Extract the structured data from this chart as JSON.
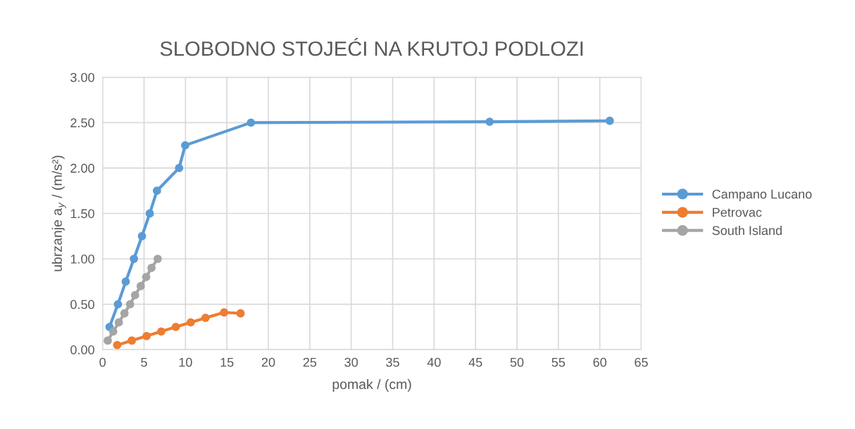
{
  "chart_data": {
    "type": "line",
    "title": "SLOBODNO STOJEĆI NA KRUTOJ PODLOZI",
    "xlabel": "pomak / (cm)",
    "ylabel": "ubrzanje a$_{y}$ / (m/s²)",
    "series": [
      {
        "name": "Campano Lucano",
        "color": "#5b9bd5",
        "x": [
          0.83,
          1.85,
          2.79,
          3.78,
          4.75,
          5.69,
          6.56,
          9.23,
          9.97,
          17.9,
          46.7,
          61.2
        ],
        "values": [
          0.25,
          0.5,
          0.75,
          1.0,
          1.25,
          1.5,
          1.75,
          2.0,
          2.25,
          2.5,
          2.51,
          2.52
        ]
      },
      {
        "name": "Petrovac",
        "color": "#ed7d31",
        "x": [
          1.76,
          3.52,
          5.31,
          7.07,
          8.83,
          10.63,
          12.42,
          14.66,
          16.65
        ],
        "values": [
          0.05,
          0.1,
          0.15,
          0.2,
          0.25,
          0.3,
          0.35,
          0.41,
          0.4
        ]
      },
      {
        "name": "South Island",
        "color": "#a5a5a5",
        "x": [
          0.62,
          1.28,
          1.96,
          2.64,
          3.32,
          3.92,
          4.6,
          5.26,
          5.9,
          6.65
        ],
        "values": [
          0.1,
          0.2,
          0.3,
          0.4,
          0.5,
          0.6,
          0.7,
          0.8,
          0.9,
          1.0
        ]
      }
    ],
    "xlim": [
      0,
      65
    ],
    "xticks": [
      0,
      5,
      10,
      15,
      20,
      25,
      30,
      35,
      40,
      45,
      50,
      55,
      60,
      65
    ],
    "ylim": [
      0,
      3
    ],
    "yticks": [
      {
        "value": 0,
        "label": "0.00"
      },
      {
        "value": 0.5,
        "label": "0.50"
      },
      {
        "value": 1,
        "label": "1.00"
      },
      {
        "value": 1.5,
        "label": "1.50"
      },
      {
        "value": 2,
        "label": "2.00"
      },
      {
        "value": 2.5,
        "label": "2.50"
      },
      {
        "value": 3,
        "label": "3.00"
      }
    ],
    "grid": true,
    "legend": "right",
    "marker": "circle",
    "line_style": "solid"
  }
}
